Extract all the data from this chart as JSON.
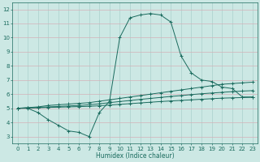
{
  "title": "",
  "xlabel": "Humidex (Indice chaleur)",
  "ylabel": "",
  "bg_color": "#cce8e4",
  "grid_color": "#aad0cc",
  "line_color": "#1a6b5e",
  "xlim": [
    -0.5,
    23.5
  ],
  "ylim": [
    2.5,
    12.5
  ],
  "xticks": [
    0,
    1,
    2,
    3,
    4,
    5,
    6,
    7,
    8,
    9,
    10,
    11,
    12,
    13,
    14,
    15,
    16,
    17,
    18,
    19,
    20,
    21,
    22,
    23
  ],
  "yticks": [
    3,
    4,
    5,
    6,
    7,
    8,
    9,
    10,
    11,
    12
  ],
  "series": [
    {
      "x": [
        0,
        1,
        2,
        3,
        4,
        5,
        6,
        7,
        8,
        9,
        10,
        11,
        12,
        13,
        14,
        15,
        16,
        17,
        18,
        19,
        20,
        21,
        22,
        23
      ],
      "y": [
        5.0,
        5.0,
        4.7,
        4.2,
        3.8,
        3.4,
        3.3,
        3.0,
        4.7,
        5.5,
        10.0,
        11.4,
        11.6,
        11.7,
        11.6,
        11.1,
        8.7,
        7.5,
        7.0,
        6.9,
        6.5,
        6.4,
        5.8,
        5.8
      ]
    },
    {
      "x": [
        0,
        1,
        2,
        3,
        4,
        5,
        6,
        7,
        8,
        9,
        10,
        11,
        12,
        13,
        14,
        15,
        16,
        17,
        18,
        19,
        20,
        21,
        22,
        23
      ],
      "y": [
        5.0,
        5.05,
        5.1,
        5.2,
        5.25,
        5.3,
        5.35,
        5.4,
        5.5,
        5.6,
        5.7,
        5.8,
        5.9,
        6.0,
        6.1,
        6.2,
        6.3,
        6.4,
        6.5,
        6.6,
        6.7,
        6.75,
        6.8,
        6.85
      ]
    },
    {
      "x": [
        0,
        1,
        2,
        3,
        4,
        5,
        6,
        7,
        8,
        9,
        10,
        11,
        12,
        13,
        14,
        15,
        16,
        17,
        18,
        19,
        20,
        21,
        22,
        23
      ],
      "y": [
        5.0,
        5.03,
        5.06,
        5.1,
        5.13,
        5.17,
        5.2,
        5.25,
        5.32,
        5.4,
        5.48,
        5.55,
        5.63,
        5.7,
        5.77,
        5.84,
        5.9,
        5.97,
        6.03,
        6.08,
        6.13,
        6.18,
        6.22,
        6.25
      ]
    },
    {
      "x": [
        0,
        1,
        2,
        3,
        4,
        5,
        6,
        7,
        8,
        9,
        10,
        11,
        12,
        13,
        14,
        15,
        16,
        17,
        18,
        19,
        20,
        21,
        22,
        23
      ],
      "y": [
        5.0,
        5.02,
        5.04,
        5.06,
        5.08,
        5.1,
        5.12,
        5.14,
        5.18,
        5.23,
        5.28,
        5.33,
        5.38,
        5.43,
        5.48,
        5.52,
        5.56,
        5.6,
        5.64,
        5.68,
        5.72,
        5.74,
        5.76,
        5.78
      ]
    }
  ]
}
